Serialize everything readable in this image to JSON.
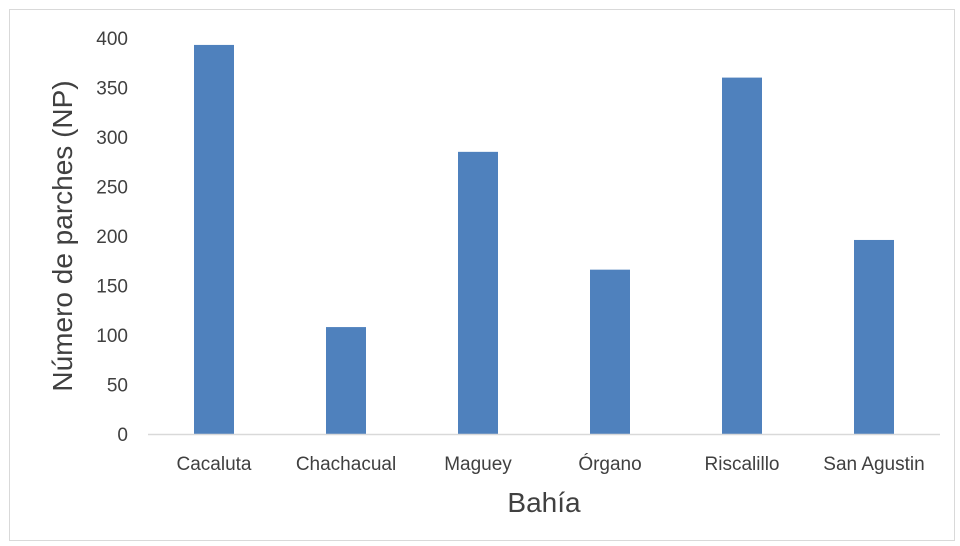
{
  "chart_data": {
    "type": "bar",
    "categories": [
      "Cacaluta",
      "Chachacual",
      "Maguey",
      "Órgano",
      "Riscalillo",
      "San Agustin"
    ],
    "values": [
      393,
      108,
      285,
      166,
      360,
      196
    ],
    "xlabel": "Bahía",
    "ylabel": "Número de parches (NP)",
    "ylim": [
      0,
      400
    ],
    "yticks": [
      0,
      50,
      100,
      150,
      200,
      250,
      300,
      350,
      400
    ],
    "grid": false,
    "bar_color": "#4f81bd",
    "axis_color": "#d9d9d9",
    "text_color": "#404040"
  }
}
